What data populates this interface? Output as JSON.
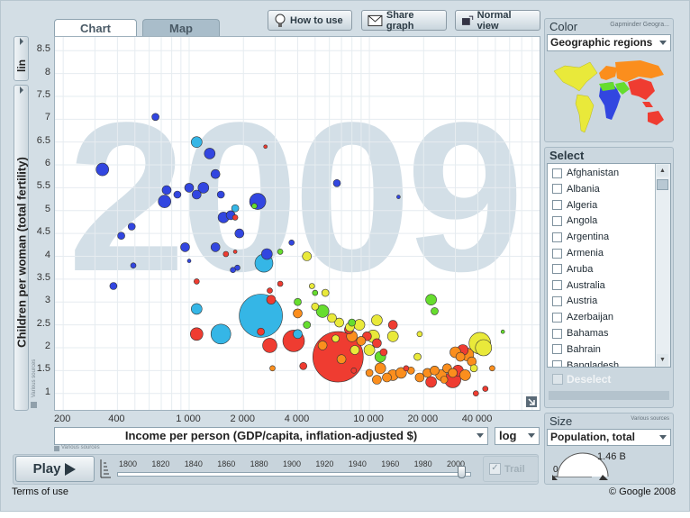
{
  "tabs": [
    "Chart",
    "Map"
  ],
  "toolbar": {
    "howto": "How to use",
    "share": "Share graph",
    "normal": "Normal view"
  },
  "yscale": "lin",
  "ylabel": "Children per woman (total fertility)",
  "y_source": "Various sources",
  "x_source": "Various sources",
  "year": "2009",
  "xlabel": "Income per person (GDP/capita, inflation-adjusted $)",
  "xscale": "log",
  "color": {
    "title": "Color",
    "provider": "Gapminder Geogra...",
    "selected": "Geographic regions"
  },
  "select": {
    "title": "Select",
    "countries": [
      "Afghanistan",
      "Albania",
      "Algeria",
      "Angola",
      "Argentina",
      "Armenia",
      "Aruba",
      "Australia",
      "Austria",
      "Azerbaijan",
      "Bahamas",
      "Bahrain",
      "Bangladesh"
    ],
    "deselect": "Deselect"
  },
  "size": {
    "title": "Size",
    "source": "Various sources",
    "selected": "Population, total",
    "min_label": "0",
    "max_label": "1.46 B"
  },
  "play": {
    "label": "Play",
    "trails": "Trail"
  },
  "timeline": [
    "1800",
    "1820",
    "1840",
    "1860",
    "1880",
    "1900",
    "1920",
    "1940",
    "1960",
    "1980",
    "2000"
  ],
  "footer": {
    "terms": "Terms of use",
    "copyright": "© Google 2008"
  },
  "colors": {
    "africa": "#35b6e6",
    "asia": "#ef3c31",
    "europe": "#fb8e1d",
    "americas": "#e9e93a",
    "middle_east": "#66dd2e",
    "africa_dark": "#3246e0"
  },
  "chart_data": {
    "type": "scatter",
    "title": "2009",
    "xlabel": "Income per person (GDP/capita, inflation-adjusted $)",
    "ylabel": "Children per woman (total fertility)",
    "x_scale": "log",
    "xlim": [
      180,
      90000
    ],
    "ylim": [
      0.6,
      8.8
    ],
    "x_ticks": [
      200,
      400,
      1000,
      2000,
      4000,
      10000,
      20000,
      40000
    ],
    "x_tick_labels": [
      "200",
      "400",
      "1 000",
      "2 000",
      "4 000",
      "10 000",
      "20 000",
      "40 000"
    ],
    "y_ticks": [
      1,
      1.5,
      2,
      2.5,
      3,
      3.5,
      4,
      4.5,
      5,
      5.5,
      6,
      6.5,
      7,
      7.5,
      8,
      8.5
    ],
    "y_tick_labels": [
      "1",
      "1.5",
      "2",
      "2.5",
      "3",
      "3.5",
      "4",
      "4.5",
      "5",
      "5.5",
      "6",
      "6.5",
      "7",
      "7.5",
      "8",
      "8.5"
    ],
    "grid": true,
    "points": [
      {
        "x": 330,
        "y": 5.9,
        "s": 7,
        "c": "#3246e0"
      },
      {
        "x": 650,
        "y": 7.05,
        "s": 4,
        "c": "#3246e0"
      },
      {
        "x": 750,
        "y": 5.45,
        "s": 5,
        "c": "#3246e0"
      },
      {
        "x": 860,
        "y": 5.35,
        "s": 4,
        "c": "#3246e0"
      },
      {
        "x": 730,
        "y": 5.2,
        "s": 7,
        "c": "#3246e0"
      },
      {
        "x": 1000,
        "y": 5.5,
        "s": 5,
        "c": "#3246e0"
      },
      {
        "x": 1300,
        "y": 6.25,
        "s": 6,
        "c": "#3246e0"
      },
      {
        "x": 1400,
        "y": 5.8,
        "s": 5,
        "c": "#3246e0"
      },
      {
        "x": 1200,
        "y": 5.5,
        "s": 6,
        "c": "#3246e0"
      },
      {
        "x": 1100,
        "y": 5.35,
        "s": 5,
        "c": "#3246e0"
      },
      {
        "x": 1500,
        "y": 5.35,
        "s": 4,
        "c": "#3246e0"
      },
      {
        "x": 1550,
        "y": 4.85,
        "s": 6,
        "c": "#3246e0"
      },
      {
        "x": 1700,
        "y": 4.9,
        "s": 5,
        "c": "#3246e0"
      },
      {
        "x": 1900,
        "y": 4.5,
        "s": 5,
        "c": "#3246e0"
      },
      {
        "x": 1400,
        "y": 4.2,
        "s": 5,
        "c": "#3246e0"
      },
      {
        "x": 950,
        "y": 4.2,
        "s": 5,
        "c": "#3246e0"
      },
      {
        "x": 2400,
        "y": 5.2,
        "s": 9,
        "c": "#3246e0"
      },
      {
        "x": 6600,
        "y": 5.6,
        "s": 4,
        "c": "#3246e0"
      },
      {
        "x": 14500,
        "y": 5.3,
        "s": 2,
        "c": "#3246e0"
      },
      {
        "x": 420,
        "y": 4.45,
        "s": 4,
        "c": "#3246e0"
      },
      {
        "x": 480,
        "y": 4.65,
        "s": 4,
        "c": "#3246e0"
      },
      {
        "x": 2700,
        "y": 4.05,
        "s": 6,
        "c": "#3246e0"
      },
      {
        "x": 3700,
        "y": 4.3,
        "s": 3,
        "c": "#3246e0"
      },
      {
        "x": 490,
        "y": 3.8,
        "s": 3,
        "c": "#3246e0"
      },
      {
        "x": 380,
        "y": 3.35,
        "s": 4,
        "c": "#3246e0"
      },
      {
        "x": 1850,
        "y": 3.75,
        "s": 3,
        "c": "#3246e0"
      },
      {
        "x": 1750,
        "y": 3.7,
        "s": 3,
        "c": "#3246e0"
      },
      {
        "x": 1000,
        "y": 3.9,
        "s": 2,
        "c": "#3246e0"
      },
      {
        "x": 1100,
        "y": 6.5,
        "s": 6,
        "c": "#35b6e6"
      },
      {
        "x": 1800,
        "y": 5.05,
        "s": 4,
        "c": "#35b6e6"
      },
      {
        "x": 2600,
        "y": 3.85,
        "s": 10,
        "c": "#35b6e6"
      },
      {
        "x": 2500,
        "y": 2.7,
        "s": 24,
        "c": "#35b6e6"
      },
      {
        "x": 1500,
        "y": 2.3,
        "s": 11,
        "c": "#35b6e6"
      },
      {
        "x": 1100,
        "y": 2.85,
        "s": 6,
        "c": "#35b6e6"
      },
      {
        "x": 4000,
        "y": 2.3,
        "s": 5,
        "c": "#35b6e6"
      },
      {
        "x": 2650,
        "y": 6.4,
        "s": 2,
        "c": "#ef3c31"
      },
      {
        "x": 2850,
        "y": 3.05,
        "s": 5,
        "c": "#ef3c31"
      },
      {
        "x": 3800,
        "y": 2.15,
        "s": 12,
        "c": "#ef3c31"
      },
      {
        "x": 6700,
        "y": 1.8,
        "s": 28,
        "c": "#ef3c31"
      },
      {
        "x": 2800,
        "y": 2.05,
        "s": 8,
        "c": "#ef3c31"
      },
      {
        "x": 1100,
        "y": 2.3,
        "s": 7,
        "c": "#ef3c31"
      },
      {
        "x": 1100,
        "y": 3.45,
        "s": 3,
        "c": "#ef3c31"
      },
      {
        "x": 2800,
        "y": 3.25,
        "s": 3,
        "c": "#ef3c31"
      },
      {
        "x": 2500,
        "y": 2.35,
        "s": 4,
        "c": "#ef3c31"
      },
      {
        "x": 11000,
        "y": 2.1,
        "s": 5,
        "c": "#ef3c31"
      },
      {
        "x": 13500,
        "y": 2.5,
        "s": 5,
        "c": "#ef3c31"
      },
      {
        "x": 22000,
        "y": 1.25,
        "s": 6,
        "c": "#ef3c31"
      },
      {
        "x": 29000,
        "y": 1.3,
        "s": 9,
        "c": "#ef3c31"
      },
      {
        "x": 31000,
        "y": 1.5,
        "s": 6,
        "c": "#ef3c31"
      },
      {
        "x": 33000,
        "y": 1.95,
        "s": 6,
        "c": "#ef3c31"
      },
      {
        "x": 39000,
        "y": 1.0,
        "s": 3,
        "c": "#ef3c31"
      },
      {
        "x": 44000,
        "y": 1.1,
        "s": 3,
        "c": "#ef3c31"
      },
      {
        "x": 1600,
        "y": 4.05,
        "s": 3,
        "c": "#ef3c31"
      },
      {
        "x": 1800,
        "y": 4.85,
        "s": 3,
        "c": "#ef3c31"
      },
      {
        "x": 3200,
        "y": 3.4,
        "s": 3,
        "c": "#ef3c31"
      },
      {
        "x": 7700,
        "y": 2.4,
        "s": 5,
        "c": "#ef3c31"
      },
      {
        "x": 9700,
        "y": 2.25,
        "s": 5,
        "c": "#ef3c31"
      },
      {
        "x": 12000,
        "y": 1.9,
        "s": 4,
        "c": "#ef3c31"
      },
      {
        "x": 16000,
        "y": 1.55,
        "s": 3,
        "c": "#ef3c31"
      },
      {
        "x": 8200,
        "y": 1.5,
        "s": 3,
        "c": "#ef3c31"
      },
      {
        "x": 4300,
        "y": 1.6,
        "s": 4,
        "c": "#ef3c31"
      },
      {
        "x": 1800,
        "y": 4.1,
        "s": 2,
        "c": "#ef3c31"
      },
      {
        "x": 10000,
        "y": 1.45,
        "s": 4,
        "c": "#fb8e1d"
      },
      {
        "x": 11500,
        "y": 1.55,
        "s": 6,
        "c": "#fb8e1d"
      },
      {
        "x": 12500,
        "y": 1.35,
        "s": 5,
        "c": "#fb8e1d"
      },
      {
        "x": 13500,
        "y": 1.4,
        "s": 6,
        "c": "#fb8e1d"
      },
      {
        "x": 15000,
        "y": 1.45,
        "s": 6,
        "c": "#fb8e1d"
      },
      {
        "x": 17000,
        "y": 1.5,
        "s": 4,
        "c": "#fb8e1d"
      },
      {
        "x": 19000,
        "y": 1.35,
        "s": 5,
        "c": "#fb8e1d"
      },
      {
        "x": 21000,
        "y": 1.45,
        "s": 5,
        "c": "#fb8e1d"
      },
      {
        "x": 23000,
        "y": 1.5,
        "s": 5,
        "c": "#fb8e1d"
      },
      {
        "x": 25000,
        "y": 1.4,
        "s": 6,
        "c": "#fb8e1d"
      },
      {
        "x": 27000,
        "y": 1.55,
        "s": 5,
        "c": "#fb8e1d"
      },
      {
        "x": 30000,
        "y": 1.9,
        "s": 6,
        "c": "#fb8e1d"
      },
      {
        "x": 32000,
        "y": 1.8,
        "s": 5,
        "c": "#fb8e1d"
      },
      {
        "x": 35000,
        "y": 1.85,
        "s": 7,
        "c": "#fb8e1d"
      },
      {
        "x": 37000,
        "y": 1.7,
        "s": 5,
        "c": "#fb8e1d"
      },
      {
        "x": 34000,
        "y": 1.4,
        "s": 6,
        "c": "#fb8e1d"
      },
      {
        "x": 29000,
        "y": 1.45,
        "s": 5,
        "c": "#fb8e1d"
      },
      {
        "x": 26000,
        "y": 1.3,
        "s": 4,
        "c": "#fb8e1d"
      },
      {
        "x": 11000,
        "y": 1.3,
        "s": 5,
        "c": "#fb8e1d"
      },
      {
        "x": 8000,
        "y": 2.25,
        "s": 6,
        "c": "#fb8e1d"
      },
      {
        "x": 5500,
        "y": 2.05,
        "s": 5,
        "c": "#fb8e1d"
      },
      {
        "x": 9000,
        "y": 2.15,
        "s": 5,
        "c": "#fb8e1d"
      },
      {
        "x": 7000,
        "y": 1.75,
        "s": 5,
        "c": "#fb8e1d"
      },
      {
        "x": 4000,
        "y": 2.75,
        "s": 5,
        "c": "#fb8e1d"
      },
      {
        "x": 2900,
        "y": 1.55,
        "s": 3,
        "c": "#fb8e1d"
      },
      {
        "x": 48000,
        "y": 1.55,
        "s": 3,
        "c": "#fb8e1d"
      },
      {
        "x": 41000,
        "y": 2.1,
        "s": 12,
        "c": "#e9e93a"
      },
      {
        "x": 43000,
        "y": 2.0,
        "s": 9,
        "c": "#e9e93a"
      },
      {
        "x": 10000,
        "y": 1.95,
        "s": 6,
        "c": "#e9e93a"
      },
      {
        "x": 10500,
        "y": 2.25,
        "s": 7,
        "c": "#e9e93a"
      },
      {
        "x": 11000,
        "y": 2.6,
        "s": 6,
        "c": "#e9e93a"
      },
      {
        "x": 8800,
        "y": 2.5,
        "s": 6,
        "c": "#e9e93a"
      },
      {
        "x": 7800,
        "y": 2.45,
        "s": 5,
        "c": "#e9e93a"
      },
      {
        "x": 6800,
        "y": 2.55,
        "s": 5,
        "c": "#e9e93a"
      },
      {
        "x": 6200,
        "y": 2.65,
        "s": 5,
        "c": "#e9e93a"
      },
      {
        "x": 5000,
        "y": 2.9,
        "s": 4,
        "c": "#e9e93a"
      },
      {
        "x": 5700,
        "y": 3.2,
        "s": 4,
        "c": "#e9e93a"
      },
      {
        "x": 4800,
        "y": 3.35,
        "s": 3,
        "c": "#e9e93a"
      },
      {
        "x": 13500,
        "y": 2.25,
        "s": 6,
        "c": "#e9e93a"
      },
      {
        "x": 4500,
        "y": 4.0,
        "s": 5,
        "c": "#e9e93a"
      },
      {
        "x": 18500,
        "y": 1.8,
        "s": 4,
        "c": "#e9e93a"
      },
      {
        "x": 19000,
        "y": 2.3,
        "s": 3,
        "c": "#e9e93a"
      },
      {
        "x": 38000,
        "y": 1.55,
        "s": 4,
        "c": "#e9e93a"
      },
      {
        "x": 6500,
        "y": 2.2,
        "s": 4,
        "c": "#e9e93a"
      },
      {
        "x": 8300,
        "y": 1.95,
        "s": 5,
        "c": "#e9e93a"
      },
      {
        "x": 22000,
        "y": 3.05,
        "s": 6,
        "c": "#66dd2e"
      },
      {
        "x": 23000,
        "y": 2.8,
        "s": 4,
        "c": "#66dd2e"
      },
      {
        "x": 11500,
        "y": 1.8,
        "s": 6,
        "c": "#66dd2e"
      },
      {
        "x": 5500,
        "y": 2.8,
        "s": 7,
        "c": "#66dd2e"
      },
      {
        "x": 4000,
        "y": 3.0,
        "s": 4,
        "c": "#66dd2e"
      },
      {
        "x": 5000,
        "y": 3.2,
        "s": 3,
        "c": "#66dd2e"
      },
      {
        "x": 8000,
        "y": 2.55,
        "s": 4,
        "c": "#66dd2e"
      },
      {
        "x": 4500,
        "y": 2.5,
        "s": 4,
        "c": "#66dd2e"
      },
      {
        "x": 2300,
        "y": 5.1,
        "s": 3,
        "c": "#66dd2e"
      },
      {
        "x": 3200,
        "y": 4.1,
        "s": 3,
        "c": "#66dd2e"
      },
      {
        "x": 55000,
        "y": 2.35,
        "s": 2,
        "c": "#66dd2e"
      }
    ]
  }
}
